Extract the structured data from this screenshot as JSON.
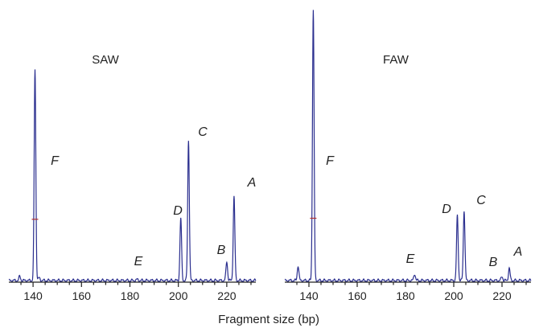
{
  "chart_data": {
    "type": "line",
    "xlabel": "Fragment size (bp)",
    "xlim": [
      130,
      232
    ],
    "ylim": [
      0,
      1
    ],
    "line_color": "#2b2f8f",
    "marker_color": "#b03030",
    "panels": [
      {
        "title": "SAW",
        "xticks": [
          140,
          160,
          180,
          200,
          220
        ],
        "series": [
          {
            "label": "F",
            "x": 140.8,
            "height": 0.78
          },
          {
            "label": "E",
            "x": 183.0,
            "height": 0.004
          },
          {
            "label": "D",
            "x": 201.0,
            "height": 0.23
          },
          {
            "label": "C",
            "x": 204.2,
            "height": 0.52
          },
          {
            "label": "B",
            "x": 220.0,
            "height": 0.07
          },
          {
            "label": "A",
            "x": 223.0,
            "height": 0.31
          }
        ],
        "minor_peaks": [
          {
            "x": 134.5,
            "height": 0.015
          },
          {
            "x": 142.5,
            "height": 0.01
          }
        ]
      },
      {
        "title": "FAW",
        "xticks": [
          140,
          160,
          180,
          200,
          220
        ],
        "series": [
          {
            "label": "F",
            "x": 141.8,
            "height": 1.0
          },
          {
            "label": "E",
            "x": 183.8,
            "height": 0.025
          },
          {
            "label": "D",
            "x": 201.5,
            "height": 0.24
          },
          {
            "label": "C",
            "x": 204.3,
            "height": 0.26
          },
          {
            "label": "B",
            "x": 220.0,
            "height": 0.015
          },
          {
            "label": "A",
            "x": 223.0,
            "height": 0.045
          }
        ],
        "minor_peaks": [
          {
            "x": 135.5,
            "height": 0.055
          }
        ]
      }
    ]
  }
}
